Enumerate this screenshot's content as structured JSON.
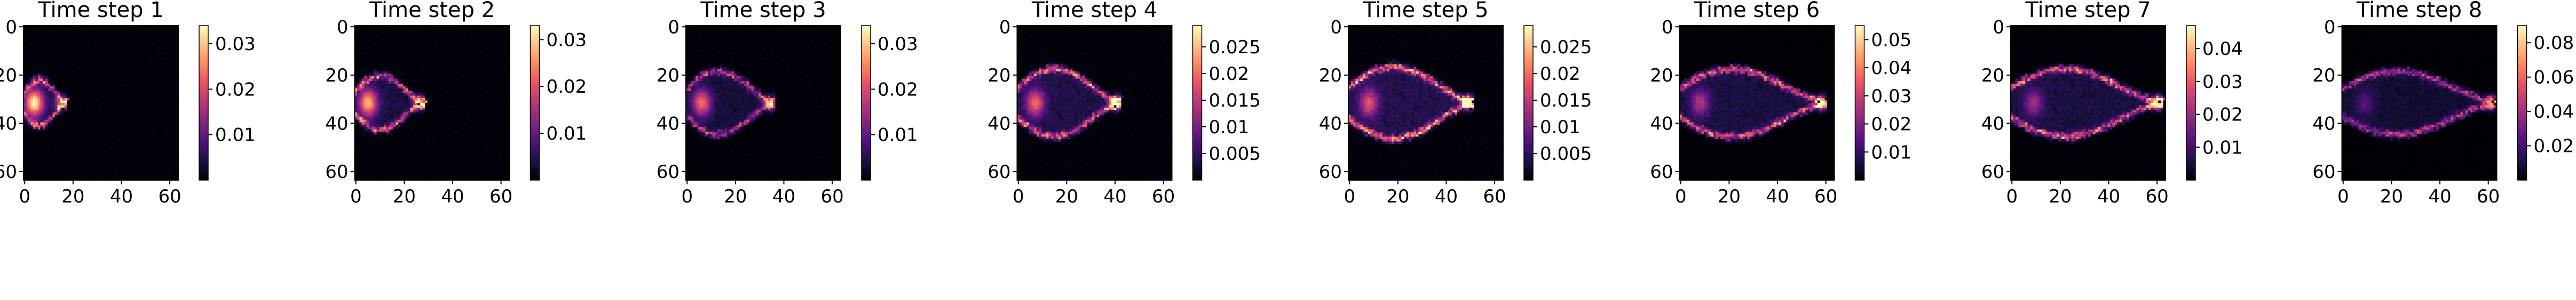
{
  "colors": {
    "colormap": [
      "#000004",
      "#1d1147",
      "#51127c",
      "#822681",
      "#b73779",
      "#e75263",
      "#fc8961",
      "#fec287",
      "#fcfdbf"
    ]
  },
  "chart_data": [
    {
      "type": "heatmap",
      "title": "Time step 1",
      "grid_size": 64,
      "xticks": [
        0,
        20,
        40,
        60
      ],
      "yticks": [
        0,
        20,
        40,
        60
      ],
      "cbar_ticks": [
        0.01,
        0.02,
        0.03
      ],
      "cbar_range": [
        0,
        0.034
      ],
      "features": {
        "tip_x": 17,
        "head_x": 4,
        "width": 9,
        "ridge": 0.02,
        "head": 0.03
      }
    },
    {
      "type": "heatmap",
      "title": "Time step 2",
      "grid_size": 64,
      "xticks": [
        0,
        20,
        40,
        60
      ],
      "yticks": [
        0,
        20,
        40,
        60
      ],
      "cbar_ticks": [
        0.01,
        0.02,
        0.03
      ],
      "cbar_range": [
        0,
        0.033
      ],
      "features": {
        "tip_x": 28,
        "head_x": 5,
        "width": 11,
        "ridge": 0.02,
        "head": 0.025
      }
    },
    {
      "type": "heatmap",
      "title": "Time step 3",
      "grid_size": 64,
      "xticks": [
        0,
        20,
        40,
        60
      ],
      "yticks": [
        0,
        20,
        40,
        60
      ],
      "cbar_ticks": [
        0.01,
        0.02,
        0.03
      ],
      "cbar_range": [
        0,
        0.034
      ],
      "features": {
        "tip_x": 36,
        "head_x": 6,
        "width": 13,
        "ridge": 0.018,
        "head": 0.02
      }
    },
    {
      "type": "heatmap",
      "title": "Time step 4",
      "grid_size": 64,
      "xticks": [
        0,
        20,
        40,
        60
      ],
      "yticks": [
        0,
        20,
        40,
        60
      ],
      "cbar_ticks": [
        0.005,
        0.01,
        0.015,
        0.02,
        0.025
      ],
      "cbar_range": [
        0,
        0.029
      ],
      "features": {
        "tip_x": 42,
        "head_x": 7,
        "width": 14,
        "ridge": 0.02,
        "head": 0.016
      }
    },
    {
      "type": "heatmap",
      "title": "Time step 5",
      "grid_size": 64,
      "xticks": [
        0,
        20,
        40,
        60
      ],
      "yticks": [
        0,
        20,
        40,
        60
      ],
      "cbar_ticks": [
        0.005,
        0.01,
        0.015,
        0.02,
        0.025
      ],
      "cbar_range": [
        0,
        0.029
      ],
      "features": {
        "tip_x": 51,
        "head_x": 8,
        "width": 15,
        "ridge": 0.022,
        "head": 0.014
      }
    },
    {
      "type": "heatmap",
      "title": "Time step 6",
      "grid_size": 64,
      "xticks": [
        0,
        20,
        40,
        60
      ],
      "yticks": [
        0,
        20,
        40,
        60
      ],
      "cbar_ticks": [
        0.01,
        0.02,
        0.03,
        0.04,
        0.05
      ],
      "cbar_range": [
        0,
        0.055
      ],
      "features": {
        "tip_x": 60,
        "head_x": 8,
        "width": 14,
        "ridge": 0.035,
        "head": 0.02
      }
    },
    {
      "type": "heatmap",
      "title": "Time step 7",
      "grid_size": 64,
      "xticks": [
        0,
        20,
        40,
        60
      ],
      "yticks": [
        0,
        20,
        40,
        60
      ],
      "cbar_ticks": [
        0.01,
        0.02,
        0.03,
        0.04
      ],
      "cbar_range": [
        0,
        0.047
      ],
      "features": {
        "tip_x": 62,
        "head_x": 9,
        "width": 14,
        "ridge": 0.03,
        "head": 0.015
      }
    },
    {
      "type": "heatmap",
      "title": "Time step 8",
      "grid_size": 64,
      "xticks": [
        0,
        20,
        40,
        60
      ],
      "yticks": [
        0,
        20,
        40,
        60
      ],
      "cbar_ticks": [
        0.02,
        0.04,
        0.06,
        0.08
      ],
      "cbar_range": [
        0,
        0.09
      ],
      "features": {
        "tip_x": 63,
        "head_x": 9,
        "width": 13,
        "ridge": 0.045,
        "head": 0.015
      }
    }
  ]
}
